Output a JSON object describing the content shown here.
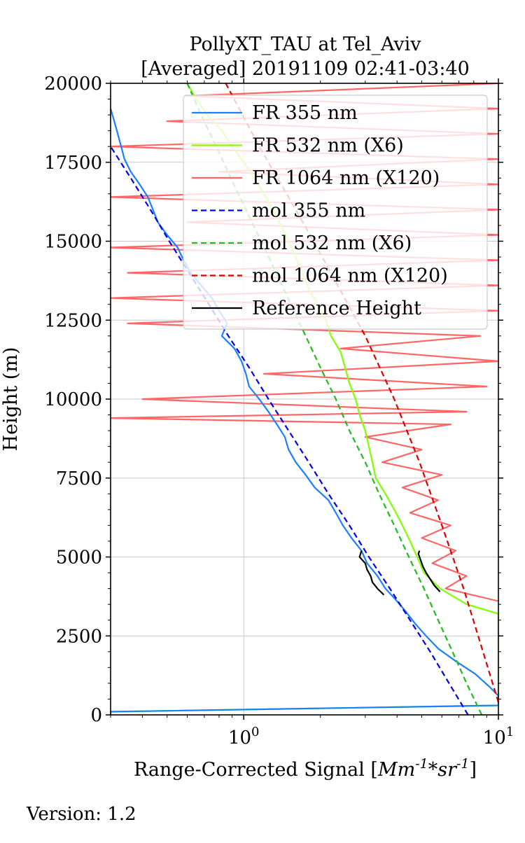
{
  "chart_data": {
    "type": "line",
    "title": "PollyXT_TAU at Tel_Aviv",
    "subtitle": "[Averaged] 20191109 02:41-03:40",
    "xlabel_main": "Range-Corrected Signal [",
    "xlabel_math": "Mm^{-1}*sr^{-1}",
    "xlabel_close": "]",
    "ylabel": "Height (m)",
    "x_scale": "log",
    "xlim": [
      0.3,
      10
    ],
    "ylim": [
      0,
      20000
    ],
    "grid": true,
    "legend_position": "upper-right",
    "x_ticks": [
      {
        "value": 1,
        "base": "10",
        "exp": "0"
      },
      {
        "value": 10,
        "base": "10",
        "exp": "1"
      }
    ],
    "y_ticks": [
      0,
      2500,
      5000,
      7500,
      10000,
      12500,
      15000,
      17500,
      20000
    ],
    "y_tick_labels": [
      "0",
      "2500",
      "5000",
      "7500",
      "10000",
      "12500",
      "15000",
      "17500",
      "20000"
    ],
    "series": [
      {
        "name": "FR 355 nm",
        "color": "#1a80ff",
        "style": "solid",
        "heights": [
          0,
          100,
          300,
          600,
          900,
          1300,
          1700,
          2100,
          2500,
          2900,
          3300,
          3700,
          4000,
          4400,
          4800,
          5200,
          5600,
          6000,
          6400,
          6800,
          7200,
          7600,
          8000,
          8400,
          8800,
          9200,
          9600,
          10000,
          10400,
          10800,
          11200,
          11600,
          12000,
          12400,
          12800,
          13200,
          13600,
          14000,
          14400,
          14800,
          15200,
          15600,
          16000,
          16400,
          16800,
          17200,
          17600,
          18000,
          18400,
          18800,
          19200
        ],
        "values": [
          0.3,
          0.3,
          10.0,
          10.0,
          9.2,
          8.1,
          6.8,
          5.8,
          5.2,
          4.7,
          4.3,
          3.9,
          3.6,
          3.35,
          3.05,
          2.9,
          2.65,
          2.45,
          2.3,
          2.15,
          1.9,
          1.75,
          1.6,
          1.5,
          1.45,
          1.35,
          1.25,
          1.15,
          1.05,
          1.02,
          0.98,
          0.92,
          0.82,
          0.86,
          0.8,
          0.75,
          0.68,
          0.62,
          0.58,
          0.55,
          0.5,
          0.46,
          0.44,
          0.42,
          0.39,
          0.36,
          0.34,
          0.33,
          0.32,
          0.31,
          0.3
        ]
      },
      {
        "name": "FR 532 nm (X6)",
        "color": "#80ff00",
        "style": "solid",
        "heights": [
          0,
          100,
          300,
          3200,
          3500,
          4000,
          4500,
          5000,
          5500,
          6000,
          6500,
          7000,
          7500,
          8000,
          8500,
          9000,
          9500,
          10000,
          10500,
          11000,
          11500,
          12000,
          12500,
          13000,
          13500,
          14000,
          14500,
          15000,
          15500,
          16000,
          16500,
          17000,
          17500,
          18000,
          18500,
          19000,
          19500,
          20000
        ],
        "values": [
          0.3,
          0.3,
          10.0,
          10.0,
          7.5,
          5.9,
          5.1,
          4.8,
          4.5,
          4.2,
          3.9,
          3.6,
          3.3,
          3.2,
          3.1,
          3.0,
          2.85,
          2.75,
          2.6,
          2.5,
          2.4,
          2.2,
          2.1,
          1.95,
          1.8,
          1.7,
          1.6,
          1.5,
          1.4,
          1.3,
          1.2,
          1.1,
          1.0,
          0.9,
          0.82,
          0.72,
          0.65,
          0.6
        ]
      },
      {
        "name": "FR 1064 nm (X120)",
        "color": "#ff6666",
        "style": "solid",
        "heights": [
          3600,
          4000,
          4400,
          4800,
          5200,
          5600,
          6000,
          6400,
          6800,
          7200,
          7600,
          8000,
          8400,
          8800,
          9200,
          9400,
          9600,
          10000,
          10400,
          10800,
          11200,
          11600,
          12000,
          12400,
          12800,
          13200,
          13600,
          14000,
          14400,
          14800,
          15200,
          15600,
          16000,
          16400,
          16800,
          17200,
          17600,
          18000,
          18400,
          18800,
          19200,
          19600,
          20000
        ],
        "values": [
          10.0,
          6.2,
          7.5,
          5.5,
          6.8,
          5.0,
          6.5,
          4.5,
          5.8,
          4.2,
          6.0,
          3.5,
          5.0,
          3.0,
          6.5,
          0.3,
          7.5,
          0.4,
          9.0,
          1.2,
          10.0,
          2.4,
          8.5,
          0.35,
          10.0,
          0.3,
          10.0,
          0.35,
          10.0,
          0.3,
          10.0,
          0.6,
          10.0,
          0.3,
          10.0,
          0.8,
          10.0,
          0.3,
          10.0,
          0.5,
          10.0,
          0.6,
          10.0
        ]
      },
      {
        "name": "mol 355 nm",
        "color": "#0000ee",
        "style": "dashed",
        "heights": [
          0,
          1000,
          2000,
          3000,
          4000,
          5000,
          6000,
          7000,
          8000,
          9000,
          10000,
          11000,
          12000,
          13000,
          14000,
          15000,
          16000,
          17000,
          18000
        ],
        "values": [
          7.6,
          6.4,
          5.4,
          4.5,
          3.75,
          3.1,
          2.6,
          2.15,
          1.8,
          1.5,
          1.25,
          1.05,
          0.87,
          0.73,
          0.61,
          0.51,
          0.43,
          0.36,
          0.3
        ]
      },
      {
        "name": "mol 532 nm (X6)",
        "color": "#22bb22",
        "style": "dashed",
        "heights": [
          0,
          1000,
          2000,
          3000,
          4000,
          5000,
          6000,
          7000,
          8000,
          9000,
          10000,
          11000,
          12000,
          13000,
          14000,
          15000,
          16000,
          17000,
          18000,
          19000,
          20000
        ],
        "values": [
          8.6,
          7.5,
          6.6,
          5.8,
          5.1,
          4.45,
          3.9,
          3.4,
          3.0,
          2.6,
          2.3,
          2.0,
          1.75,
          1.53,
          1.34,
          1.17,
          1.02,
          0.89,
          0.78,
          0.68,
          0.6
        ]
      },
      {
        "name": "mol 1064 nm (X120)",
        "color": "#dd0000",
        "style": "dashed",
        "heights": [
          400,
          2000,
          4000,
          6000,
          8000,
          10000,
          12000,
          14000,
          16000,
          18000,
          20000
        ],
        "values": [
          10.0,
          8.7,
          7.3,
          6.0,
          4.9,
          3.9,
          3.0,
          2.2,
          1.6,
          1.15,
          0.85
        ]
      },
      {
        "name": "Reference Height",
        "color": "#000000",
        "style": "solid",
        "heights": [
          3800,
          4000,
          4200,
          4400,
          4600,
          4800,
          5000,
          5200
        ],
        "values": [
          3.55,
          3.35,
          3.2,
          3.15,
          3.05,
          3.0,
          2.85,
          2.9
        ]
      }
    ],
    "reference_height_532": {
      "heights": [
        3900,
        4100,
        4300,
        4500,
        4700,
        4900,
        5100,
        5200
      ],
      "values": [
        5.9,
        5.6,
        5.4,
        5.2,
        5.05,
        4.95,
        4.85,
        4.9
      ]
    }
  },
  "footer": {
    "version": "Version: 1.2"
  }
}
